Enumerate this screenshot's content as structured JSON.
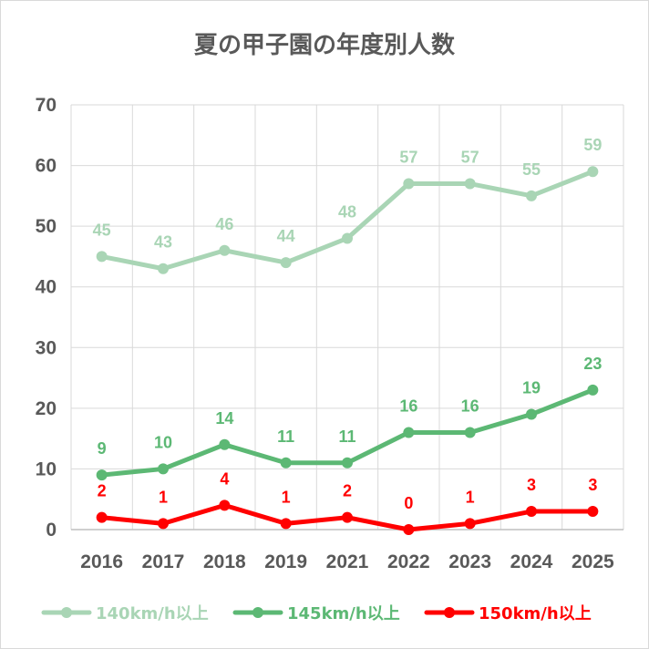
{
  "chart_data": {
    "type": "line",
    "title": "夏の甲子園の年度別人数",
    "categories": [
      "2016",
      "2017",
      "2018",
      "2019",
      "2021",
      "2022",
      "2023",
      "2024",
      "2025"
    ],
    "ylim": [
      0,
      70
    ],
    "yticks": [
      0,
      10,
      20,
      30,
      40,
      50,
      60,
      70
    ],
    "grid": true,
    "legend": "bottom",
    "series": [
      {
        "name": "140km/h以上",
        "color": "#a9d5b5",
        "values": [
          45,
          43,
          46,
          44,
          48,
          57,
          57,
          55,
          59
        ]
      },
      {
        "name": "145km/h以上",
        "color": "#5cb874",
        "values": [
          9,
          10,
          14,
          11,
          11,
          16,
          16,
          19,
          23
        ]
      },
      {
        "name": "150km/h以上",
        "color": "#ff0000",
        "values": [
          2,
          1,
          4,
          1,
          2,
          0,
          1,
          3,
          3
        ]
      }
    ]
  }
}
